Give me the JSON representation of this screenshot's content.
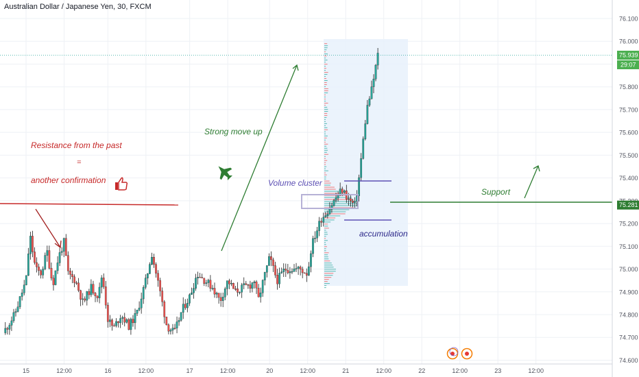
{
  "header": {
    "title": "Australian Dollar / Japanese Yen, 30, FXCM"
  },
  "colors": {
    "up": "#26a69a",
    "down": "#ef5350",
    "candle_body": "#1b1b1b",
    "grid": "#eef1f5",
    "annotation_red": "#c62828",
    "annotation_green": "#2e7d32",
    "annotation_purple": "#5c4fb3",
    "price_tag": "#4caf50",
    "volume_box": "#e8f1fb",
    "text": "#131722"
  },
  "chart_data": {
    "type": "candlestick",
    "title": "Australian Dollar / Japanese Yen, 30, FXCM",
    "y_ticks": [
      "76.100",
      "76.000",
      "75.900",
      "75.800",
      "75.700",
      "75.600",
      "75.500",
      "75.400",
      "75.300",
      "75.200",
      "75.100",
      "75.000",
      "74.900",
      "74.800",
      "74.700",
      "74.600"
    ],
    "x_ticks": [
      {
        "label": "15",
        "day": 0
      },
      {
        "label": "12:00",
        "day": 1.0
      },
      {
        "label": "16",
        "day": 2.15
      },
      {
        "label": "12:00",
        "day": 3.15
      },
      {
        "label": "17",
        "day": 4.3
      },
      {
        "label": "12:00",
        "day": 5.3
      },
      {
        "label": "20",
        "day": 6.4
      },
      {
        "label": "12:00",
        "day": 7.4
      },
      {
        "label": "21",
        "day": 8.4
      },
      {
        "label": "12:00",
        "day": 9.4
      },
      {
        "label": "22",
        "day": 10.4
      },
      {
        "label": "12:00",
        "day": 11.4
      },
      {
        "label": "23",
        "day": 12.4
      },
      {
        "label": "12:00",
        "day": 13.4
      }
    ],
    "ylim": [
      74.58,
      76.13
    ],
    "last_price": {
      "label": "75.939",
      "value": 75.939
    },
    "countdown": "29:07",
    "support_price": {
      "label": "75.281",
      "value": 75.281
    },
    "close_path": [
      [
        -0.6,
        74.72
      ],
      [
        -0.3,
        74.8
      ],
      [
        0.0,
        74.95
      ],
      [
        0.1,
        75.15
      ],
      [
        0.25,
        75.0
      ],
      [
        0.4,
        74.98
      ],
      [
        0.55,
        75.08
      ],
      [
        0.7,
        74.93
      ],
      [
        0.85,
        75.05
      ],
      [
        1.0,
        75.12
      ],
      [
        1.1,
        74.98
      ],
      [
        1.3,
        74.95
      ],
      [
        1.5,
        74.85
      ],
      [
        1.7,
        74.92
      ],
      [
        1.9,
        74.88
      ],
      [
        2.0,
        74.98
      ],
      [
        2.15,
        74.78
      ],
      [
        2.3,
        74.74
      ],
      [
        2.5,
        74.8
      ],
      [
        2.7,
        74.75
      ],
      [
        2.9,
        74.8
      ],
      [
        3.15,
        74.95
      ],
      [
        3.3,
        75.07
      ],
      [
        3.5,
        74.92
      ],
      [
        3.7,
        74.75
      ],
      [
        3.9,
        74.72
      ],
      [
        4.1,
        74.82
      ],
      [
        4.3,
        74.88
      ],
      [
        4.5,
        74.98
      ],
      [
        4.7,
        74.95
      ],
      [
        4.9,
        74.92
      ],
      [
        5.1,
        74.86
      ],
      [
        5.3,
        74.95
      ],
      [
        5.5,
        74.9
      ],
      [
        5.7,
        74.92
      ],
      [
        5.9,
        74.93
      ],
      [
        6.0,
        74.95
      ],
      [
        6.1,
        74.86
      ],
      [
        6.25,
        74.96
      ],
      [
        6.4,
        75.05
      ],
      [
        6.6,
        74.95
      ],
      [
        6.8,
        75.0
      ],
      [
        7.0,
        75.0
      ],
      [
        7.2,
        75.0
      ],
      [
        7.4,
        74.98
      ],
      [
        7.5,
        75.1
      ],
      [
        7.6,
        75.15
      ],
      [
        7.75,
        75.22
      ],
      [
        7.9,
        75.25
      ],
      [
        8.1,
        75.3
      ],
      [
        8.3,
        75.35
      ],
      [
        8.5,
        75.3
      ],
      [
        8.65,
        75.28
      ],
      [
        8.75,
        75.4
      ],
      [
        8.85,
        75.55
      ],
      [
        8.95,
        75.7
      ],
      [
        9.1,
        75.8
      ],
      [
        9.2,
        75.9
      ],
      [
        9.27,
        75.96
      ]
    ]
  },
  "annotations": {
    "resistance_text": "Resistance from the past",
    "equals_text": "=",
    "confirmation_text": "another confirmation",
    "strong_move_text": "Strong move up",
    "volume_cluster_text": "Volume cluster",
    "accumulation_text": "accumulation",
    "support_text": "Support",
    "thumbs_up_icon": "thumbs-up-icon",
    "jet_icon": "fighter-jet-icon",
    "event_icons": [
      "calendar-event-icon",
      "calendar-event-icon"
    ]
  }
}
